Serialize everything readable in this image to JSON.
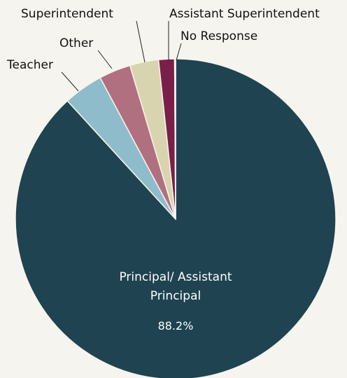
{
  "chart_data": {
    "type": "pie",
    "categories": [
      "Principal/ Assistant Principal",
      "Teacher",
      "Other",
      "Superintendent",
      "Assistant Superintendent",
      "No Response"
    ],
    "values": [
      88.2,
      4.0,
      3.2,
      2.9,
      1.6,
      0.1
    ],
    "value_labels": [
      "88.2%",
      null,
      null,
      null,
      null,
      null
    ],
    "colors": [
      "#1f4350",
      "#8fbccb",
      "#b0707f",
      "#d8d4b0",
      "#7a1f48",
      "#5a1a38"
    ]
  }
}
